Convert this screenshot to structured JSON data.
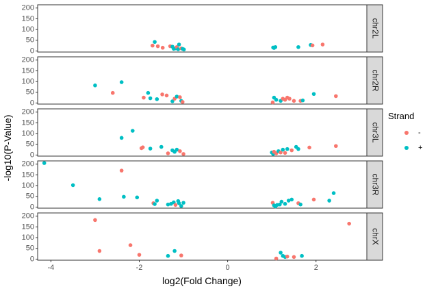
{
  "chart_data": {
    "type": "scatter",
    "xlabel": "log2(Fold Change)",
    "ylabel": "-log10(P-Value)",
    "xlim": [
      -4.3,
      3.15
    ],
    "ylim": [
      -5,
      215
    ],
    "x_ticks": [
      -4,
      -2,
      0,
      2
    ],
    "x_tick_labels": [
      "-4",
      "-2",
      "0",
      "2"
    ],
    "y_ticks": [
      0,
      50,
      100,
      150,
      200
    ],
    "y_tick_labels": [
      "0",
      "50",
      "100",
      "150",
      "200"
    ],
    "grid": false,
    "facet_position": "right",
    "legend": {
      "title": "Strand",
      "position": "right",
      "entries": [
        {
          "label": "-",
          "color": "#F8766D"
        },
        {
          "label": "+",
          "color": "#00BFC4"
        }
      ]
    },
    "panels": [
      {
        "label": "chr2L",
        "points": [
          {
            "x": -1.65,
            "y": 42,
            "strand": "+"
          },
          {
            "x": -1.7,
            "y": 25,
            "strand": "-"
          },
          {
            "x": -1.58,
            "y": 22,
            "strand": "-"
          },
          {
            "x": -1.47,
            "y": 15,
            "strand": "-"
          },
          {
            "x": -1.3,
            "y": 22,
            "strand": "-"
          },
          {
            "x": -1.25,
            "y": 20,
            "strand": "+"
          },
          {
            "x": -1.22,
            "y": 10,
            "strand": "+"
          },
          {
            "x": -1.18,
            "y": 12,
            "strand": "+"
          },
          {
            "x": -1.15,
            "y": 18,
            "strand": "-"
          },
          {
            "x": -1.12,
            "y": 8,
            "strand": "+"
          },
          {
            "x": -1.1,
            "y": 30,
            "strand": "+"
          },
          {
            "x": -1.05,
            "y": 12,
            "strand": "-"
          },
          {
            "x": -1.02,
            "y": 10,
            "strand": "+"
          },
          {
            "x": -0.99,
            "y": 7,
            "strand": "+"
          },
          {
            "x": 1.03,
            "y": 16,
            "strand": "+"
          },
          {
            "x": 1.05,
            "y": 14,
            "strand": "+"
          },
          {
            "x": 1.08,
            "y": 18,
            "strand": "+"
          },
          {
            "x": 1.6,
            "y": 18,
            "strand": "+"
          },
          {
            "x": 1.88,
            "y": 28,
            "strand": "+"
          },
          {
            "x": 1.92,
            "y": 26,
            "strand": "-"
          },
          {
            "x": 2.15,
            "y": 30,
            "strand": "-"
          }
        ]
      },
      {
        "label": "chr2R",
        "points": [
          {
            "x": -3.0,
            "y": 82,
            "strand": "+"
          },
          {
            "x": -2.6,
            "y": 47,
            "strand": "-"
          },
          {
            "x": -2.4,
            "y": 97,
            "strand": "+"
          },
          {
            "x": -1.9,
            "y": 25,
            "strand": "-"
          },
          {
            "x": -1.8,
            "y": 47,
            "strand": "+"
          },
          {
            "x": -1.75,
            "y": 22,
            "strand": "+"
          },
          {
            "x": -1.6,
            "y": 18,
            "strand": "+"
          },
          {
            "x": -1.48,
            "y": 40,
            "strand": "-"
          },
          {
            "x": -1.38,
            "y": 35,
            "strand": "-"
          },
          {
            "x": -1.25,
            "y": 8,
            "strand": "+"
          },
          {
            "x": -1.2,
            "y": 20,
            "strand": "-"
          },
          {
            "x": -1.15,
            "y": 30,
            "strand": "+"
          },
          {
            "x": -1.08,
            "y": 27,
            "strand": "-"
          },
          {
            "x": -1.05,
            "y": 10,
            "strand": "+"
          },
          {
            "x": -1.02,
            "y": 5,
            "strand": "-"
          },
          {
            "x": 1.02,
            "y": 3,
            "strand": "-"
          },
          {
            "x": 1.05,
            "y": 25,
            "strand": "+"
          },
          {
            "x": 1.1,
            "y": 15,
            "strand": "+"
          },
          {
            "x": 1.2,
            "y": 10,
            "strand": "+"
          },
          {
            "x": 1.25,
            "y": 20,
            "strand": "-"
          },
          {
            "x": 1.3,
            "y": 15,
            "strand": "-"
          },
          {
            "x": 1.35,
            "y": 25,
            "strand": "-"
          },
          {
            "x": 1.4,
            "y": 20,
            "strand": "-"
          },
          {
            "x": 1.5,
            "y": 10,
            "strand": "-"
          },
          {
            "x": 1.65,
            "y": 10,
            "strand": "-"
          },
          {
            "x": 1.7,
            "y": 12,
            "strand": "+"
          },
          {
            "x": 1.95,
            "y": 42,
            "strand": "+"
          },
          {
            "x": 2.45,
            "y": 32,
            "strand": "-"
          }
        ]
      },
      {
        "label": "chr3L",
        "points": [
          {
            "x": -2.4,
            "y": 80,
            "strand": "+"
          },
          {
            "x": -2.15,
            "y": 113,
            "strand": "+"
          },
          {
            "x": -1.95,
            "y": 32,
            "strand": "-"
          },
          {
            "x": -1.92,
            "y": 36,
            "strand": "-"
          },
          {
            "x": -1.75,
            "y": 30,
            "strand": "+"
          },
          {
            "x": -1.5,
            "y": 38,
            "strand": "+"
          },
          {
            "x": -1.35,
            "y": 8,
            "strand": "-"
          },
          {
            "x": -1.25,
            "y": 22,
            "strand": "+"
          },
          {
            "x": -1.2,
            "y": 15,
            "strand": "+"
          },
          {
            "x": -1.15,
            "y": 25,
            "strand": "+"
          },
          {
            "x": -1.08,
            "y": 18,
            "strand": "-"
          },
          {
            "x": -1.0,
            "y": 5,
            "strand": "-"
          },
          {
            "x": 1.0,
            "y": 12,
            "strand": "+"
          },
          {
            "x": 1.03,
            "y": 5,
            "strand": "+"
          },
          {
            "x": 1.05,
            "y": 15,
            "strand": "-"
          },
          {
            "x": 1.1,
            "y": 8,
            "strand": "-"
          },
          {
            "x": 1.15,
            "y": 18,
            "strand": "+"
          },
          {
            "x": 1.2,
            "y": 12,
            "strand": "-"
          },
          {
            "x": 1.25,
            "y": 25,
            "strand": "+"
          },
          {
            "x": 1.3,
            "y": 10,
            "strand": "-"
          },
          {
            "x": 1.35,
            "y": 28,
            "strand": "+"
          },
          {
            "x": 1.45,
            "y": 22,
            "strand": "-"
          },
          {
            "x": 1.55,
            "y": 38,
            "strand": "+"
          },
          {
            "x": 1.6,
            "y": 28,
            "strand": "+"
          },
          {
            "x": 1.85,
            "y": 35,
            "strand": "-"
          },
          {
            "x": 2.45,
            "y": 42,
            "strand": "-"
          }
        ]
      },
      {
        "label": "chr3R",
        "points": [
          {
            "x": -4.15,
            "y": 205,
            "strand": "+"
          },
          {
            "x": -3.5,
            "y": 102,
            "strand": "+"
          },
          {
            "x": -2.9,
            "y": 37,
            "strand": "+"
          },
          {
            "x": -2.4,
            "y": 170,
            "strand": "-"
          },
          {
            "x": -2.35,
            "y": 48,
            "strand": "+"
          },
          {
            "x": -2.05,
            "y": 45,
            "strand": "+"
          },
          {
            "x": -1.68,
            "y": 18,
            "strand": "-"
          },
          {
            "x": -1.65,
            "y": 14,
            "strand": "+"
          },
          {
            "x": -1.6,
            "y": 30,
            "strand": "+"
          },
          {
            "x": -1.35,
            "y": 12,
            "strand": "+"
          },
          {
            "x": -1.28,
            "y": 15,
            "strand": "+"
          },
          {
            "x": -1.22,
            "y": 22,
            "strand": "+"
          },
          {
            "x": -1.18,
            "y": 10,
            "strand": "-"
          },
          {
            "x": -1.12,
            "y": 28,
            "strand": "+"
          },
          {
            "x": -1.1,
            "y": 18,
            "strand": "+"
          },
          {
            "x": -1.05,
            "y": 5,
            "strand": "+"
          },
          {
            "x": -1.0,
            "y": 20,
            "strand": "+"
          },
          {
            "x": 1.02,
            "y": 20,
            "strand": "-"
          },
          {
            "x": 1.05,
            "y": 8,
            "strand": "+"
          },
          {
            "x": 1.08,
            "y": 3,
            "strand": "+"
          },
          {
            "x": 1.12,
            "y": 10,
            "strand": "+"
          },
          {
            "x": 1.18,
            "y": 12,
            "strand": "+"
          },
          {
            "x": 1.22,
            "y": 25,
            "strand": "+"
          },
          {
            "x": 1.3,
            "y": 15,
            "strand": "+"
          },
          {
            "x": 1.38,
            "y": 30,
            "strand": "+"
          },
          {
            "x": 1.45,
            "y": 35,
            "strand": "+"
          },
          {
            "x": 1.6,
            "y": 18,
            "strand": "-"
          },
          {
            "x": 1.65,
            "y": 12,
            "strand": "+"
          },
          {
            "x": 1.95,
            "y": 35,
            "strand": "-"
          },
          {
            "x": 2.3,
            "y": 30,
            "strand": "+"
          },
          {
            "x": 2.4,
            "y": 65,
            "strand": "+"
          }
        ]
      },
      {
        "label": "chrX",
        "points": [
          {
            "x": -3.0,
            "y": 182,
            "strand": "-"
          },
          {
            "x": -2.9,
            "y": 38,
            "strand": "-"
          },
          {
            "x": -2.2,
            "y": 65,
            "strand": "-"
          },
          {
            "x": -2.0,
            "y": 20,
            "strand": "-"
          },
          {
            "x": -1.35,
            "y": 15,
            "strand": "+"
          },
          {
            "x": -1.2,
            "y": 38,
            "strand": "+"
          },
          {
            "x": -1.05,
            "y": 17,
            "strand": "-"
          },
          {
            "x": 1.1,
            "y": 3,
            "strand": "-"
          },
          {
            "x": 1.2,
            "y": 30,
            "strand": "+"
          },
          {
            "x": 1.25,
            "y": 15,
            "strand": "+"
          },
          {
            "x": 1.3,
            "y": 10,
            "strand": "+"
          },
          {
            "x": 1.35,
            "y": 12,
            "strand": "-"
          },
          {
            "x": 1.5,
            "y": 10,
            "strand": "-"
          },
          {
            "x": 1.68,
            "y": 15,
            "strand": "+"
          },
          {
            "x": 2.75,
            "y": 165,
            "strand": "-"
          }
        ]
      }
    ]
  }
}
